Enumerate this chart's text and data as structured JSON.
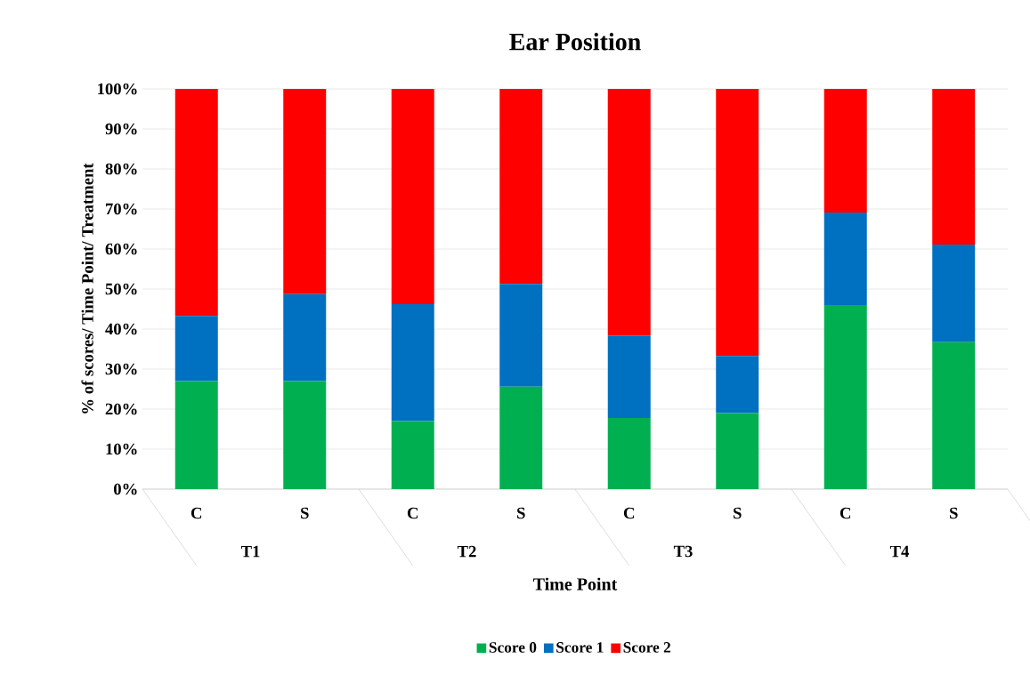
{
  "chart_data": {
    "type": "bar",
    "stacked": true,
    "title": "Ear Position",
    "xlabel": "Time Point",
    "ylabel": "% of scores/ Time Point/ Treatment",
    "categories": [
      "C",
      "S",
      "C",
      "S",
      "C",
      "S",
      "C",
      "S"
    ],
    "annotations": [
      "T1",
      "T2",
      "T3",
      "T4"
    ],
    "series": [
      {
        "name": "Score 0",
        "color": "#00b050",
        "values": [
          27,
          27,
          17,
          25.6,
          17.8,
          19,
          46,
          36.7
        ]
      },
      {
        "name": "Score 1",
        "color": "#0070c0",
        "values": [
          16.3,
          21.7,
          29.2,
          25.7,
          20.6,
          14.3,
          23.1,
          24.4
        ]
      },
      {
        "name": "Score 2",
        "color": "#ff0000",
        "values": [
          56.7,
          51.3,
          53.8,
          48.7,
          61.6,
          66.7,
          30.9,
          38.9
        ]
      }
    ],
    "ylim": [
      0,
      100
    ],
    "yticks": [
      {
        "value": 0,
        "label": "0%"
      },
      {
        "value": 10,
        "label": "10%"
      },
      {
        "value": 20,
        "label": "20%"
      },
      {
        "value": 30,
        "label": "30%"
      },
      {
        "value": 40,
        "label": "40%"
      },
      {
        "value": 50,
        "label": "50%"
      },
      {
        "value": 60,
        "label": "60%"
      },
      {
        "value": 70,
        "label": "70%"
      },
      {
        "value": 80,
        "label": "80%"
      },
      {
        "value": 90,
        "label": "90%"
      },
      {
        "value": 100,
        "label": "100%"
      }
    ],
    "grid": "y",
    "legend": "bottom"
  }
}
